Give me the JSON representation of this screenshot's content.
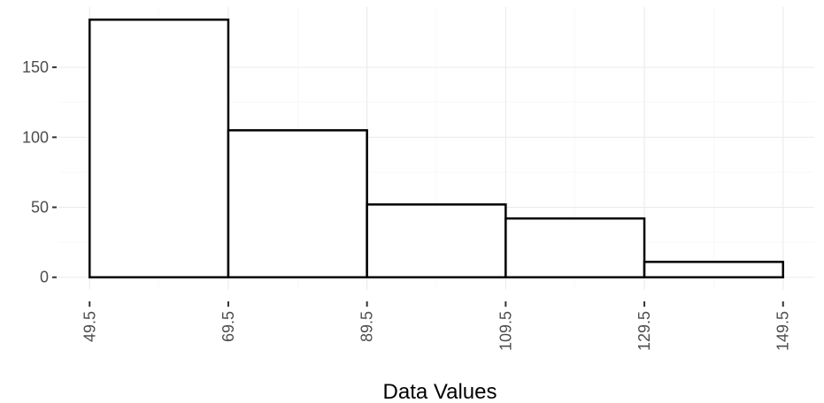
{
  "chart_data": {
    "type": "bar",
    "variant": "histogram",
    "bin_edges": [
      49.5,
      69.5,
      89.5,
      109.5,
      129.5,
      149.5
    ],
    "x_tick_labels": [
      "49.5",
      "69.5",
      "89.5",
      "109.5",
      "129.5",
      "149.5"
    ],
    "values": [
      184,
      105,
      52,
      42,
      11
    ],
    "y_ticks": [
      0,
      50,
      100,
      150
    ],
    "y_tick_labels": [
      "0",
      "50",
      "100",
      "150"
    ],
    "xlabel": "Data Values",
    "ylabel": "",
    "title": "",
    "xlim": [
      49.5,
      149.5
    ],
    "ylim": [
      0,
      193
    ],
    "grid": true,
    "bar_fill": "#ffffff",
    "bar_stroke": "#000000",
    "grid_color": "#ebebeb"
  }
}
